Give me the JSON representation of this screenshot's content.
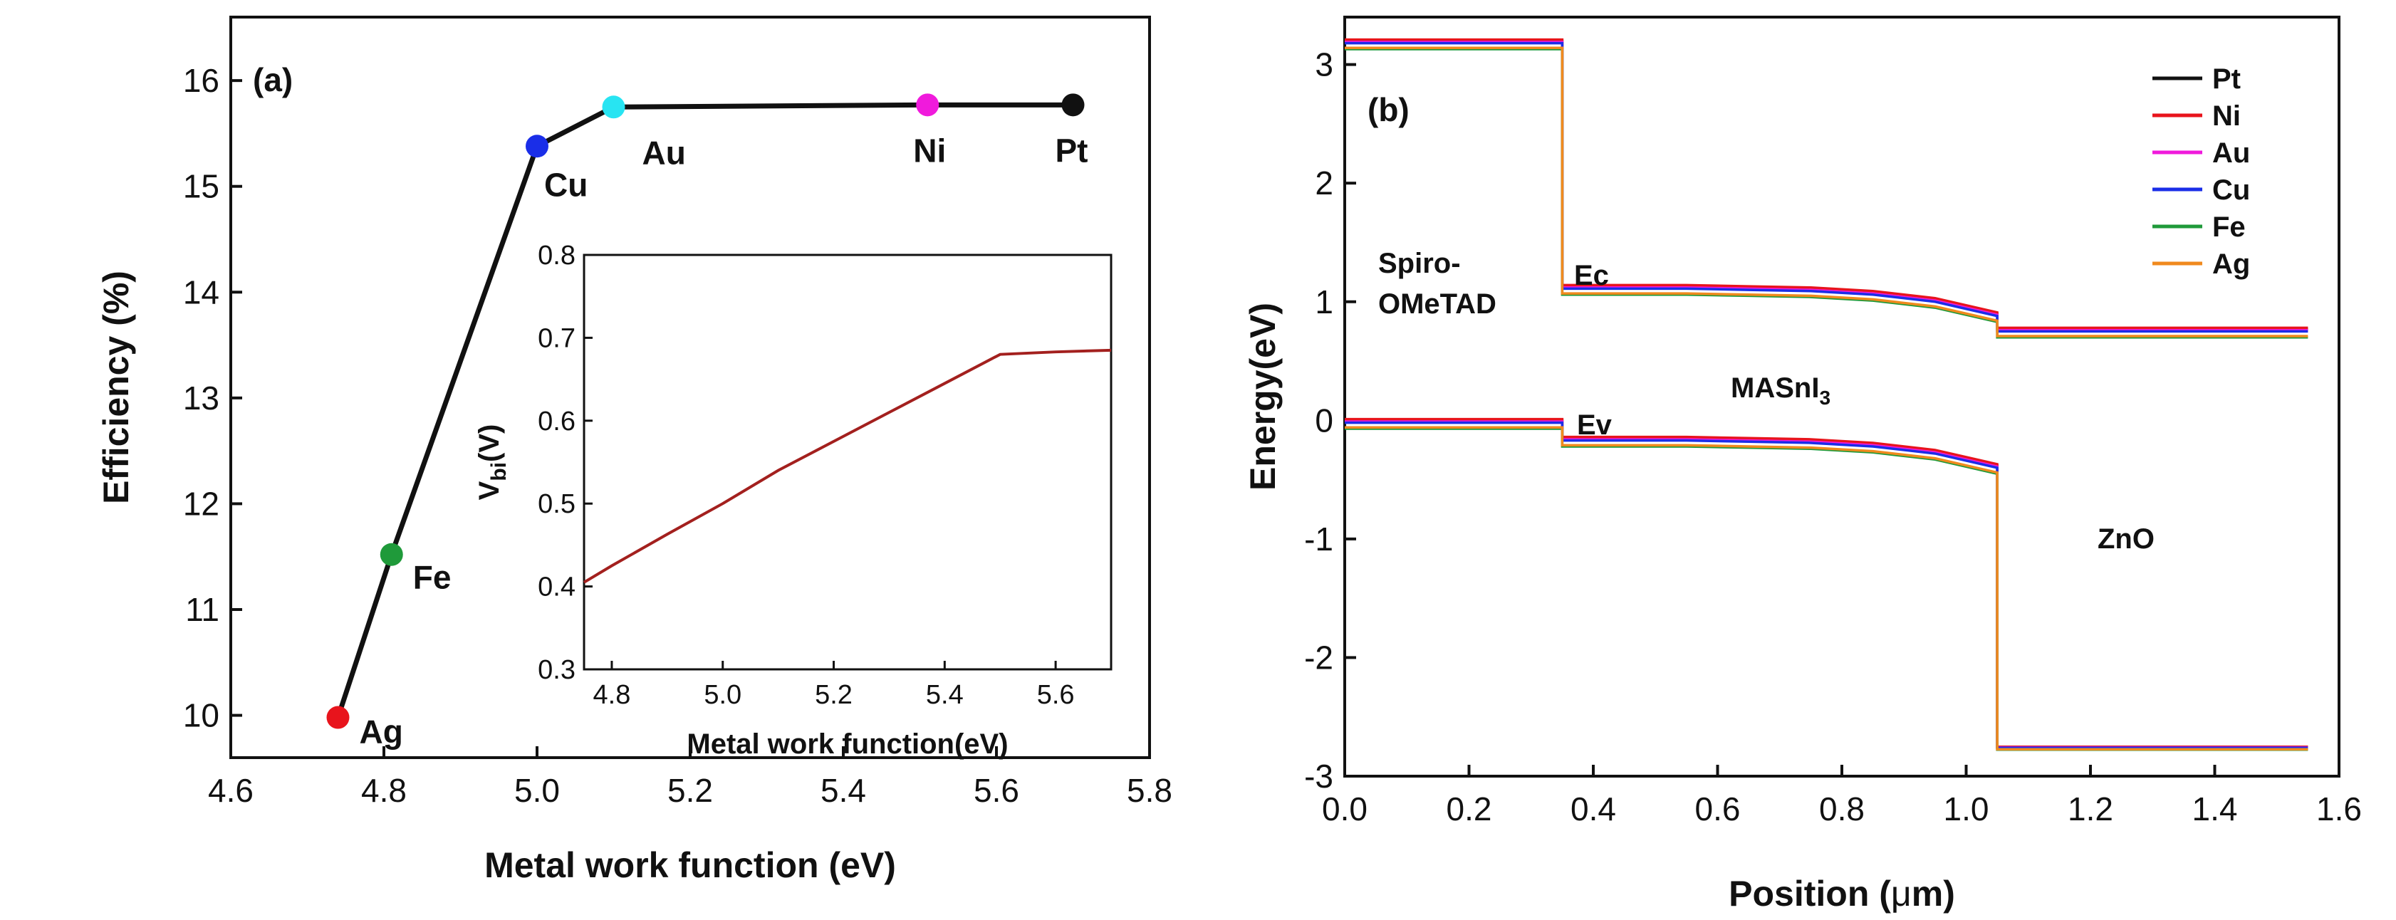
{
  "chart_data": [
    {
      "panel": "(a)",
      "type": "line",
      "xlabel": "Metal work function (eV)",
      "ylabel": "Efficiency (%)",
      "xlim": [
        4.6,
        5.8
      ],
      "ylim": [
        9.6,
        16.6
      ],
      "xticks": [
        "4.6",
        "4.8",
        "5.0",
        "5.2",
        "5.4",
        "5.6",
        "5.8"
      ],
      "yticks": [
        "10",
        "11",
        "12",
        "13",
        "14",
        "15",
        "16"
      ],
      "points": [
        {
          "label": "Ag",
          "x": 4.74,
          "y": 9.98,
          "color": "#e8141c"
        },
        {
          "label": "Fe",
          "x": 4.81,
          "y": 11.52,
          "color": "#1f9a3a"
        },
        {
          "label": "Cu",
          "x": 5.0,
          "y": 15.38,
          "color": "#1a2ee8"
        },
        {
          "label": "Au",
          "x": 5.1,
          "y": 15.75,
          "color": "#28e4f2"
        },
        {
          "label": "Ni",
          "x": 5.51,
          "y": 15.77,
          "color": "#f01adc"
        },
        {
          "label": "Pt",
          "x": 5.7,
          "y": 15.77,
          "color": "#111111"
        }
      ],
      "inset": {
        "type": "line",
        "xlabel": "Metal work function(eV)",
        "ylabel_main": "V",
        "ylabel_sub": "bi",
        "ylabel_unit": "(V)",
        "xlim": [
          4.75,
          5.7
        ],
        "ylim": [
          0.3,
          0.8
        ],
        "xticks": [
          "4.8",
          "5.0",
          "5.2",
          "5.4",
          "5.6"
        ],
        "yticks": [
          "0.3",
          "0.4",
          "0.5",
          "0.6",
          "0.7",
          "0.8"
        ],
        "color": "#a3201e",
        "x": [
          4.75,
          4.8,
          4.9,
          5.0,
          5.1,
          5.2,
          5.3,
          5.4,
          5.5,
          5.6,
          5.7
        ],
        "y": [
          0.405,
          0.425,
          0.463,
          0.5,
          0.54,
          0.575,
          0.61,
          0.645,
          0.68,
          0.683,
          0.685
        ]
      }
    },
    {
      "panel": "(b)",
      "type": "line",
      "xlabel_pre": "Position (",
      "xlabel_mu": "μ",
      "xlabel_post": "m)",
      "ylabel": "Energy(eV)",
      "xlim": [
        0.0,
        1.6
      ],
      "ylim": [
        -3.0,
        3.4
      ],
      "xticks": [
        "0.0",
        "0.2",
        "0.4",
        "0.6",
        "0.8",
        "1.0",
        "1.2",
        "1.4",
        "1.6"
      ],
      "yticks": [
        "-3",
        "-2",
        "-1",
        "0",
        "1",
        "2",
        "3"
      ],
      "annotations": {
        "spiro_line1": "Spiro-",
        "spiro_line2": "OMeTAD",
        "ec": "Ec",
        "ev": "Ev",
        "masn_main": "MASnI",
        "masn_sub": "3",
        "zno": "ZnO"
      },
      "series": [
        {
          "name": "Pt",
          "color": "#111111",
          "offset": 0.05
        },
        {
          "name": "Ni",
          "color": "#e8141c",
          "offset": 0.06
        },
        {
          "name": "Au",
          "color": "#f01adc",
          "offset": 0.04
        },
        {
          "name": "Cu",
          "color": "#1a2ee8",
          "offset": 0.03
        },
        {
          "name": "Fe",
          "color": "#1f9a3a",
          "offset": -0.02
        },
        {
          "name": "Ag",
          "color": "#f08a1e",
          "offset": -0.01
        }
      ],
      "ec_profile": {
        "x": [
          0.0,
          0.35,
          0.35,
          0.45,
          0.55,
          0.65,
          0.75,
          0.85,
          0.95,
          1.05,
          1.05,
          1.55
        ],
        "y": [
          3.15,
          3.15,
          1.08,
          1.08,
          1.08,
          1.07,
          1.06,
          1.03,
          0.97,
          0.85,
          0.72,
          0.72
        ]
      },
      "ev_profile": {
        "x": [
          0.0,
          0.35,
          0.35,
          0.45,
          0.55,
          0.65,
          0.75,
          0.85,
          0.95,
          1.05,
          1.05,
          1.55
        ],
        "y": [
          -0.05,
          -0.05,
          -0.2,
          -0.2,
          -0.2,
          -0.21,
          -0.22,
          -0.25,
          -0.31,
          -0.43,
          -2.77,
          -2.77
        ]
      }
    }
  ]
}
